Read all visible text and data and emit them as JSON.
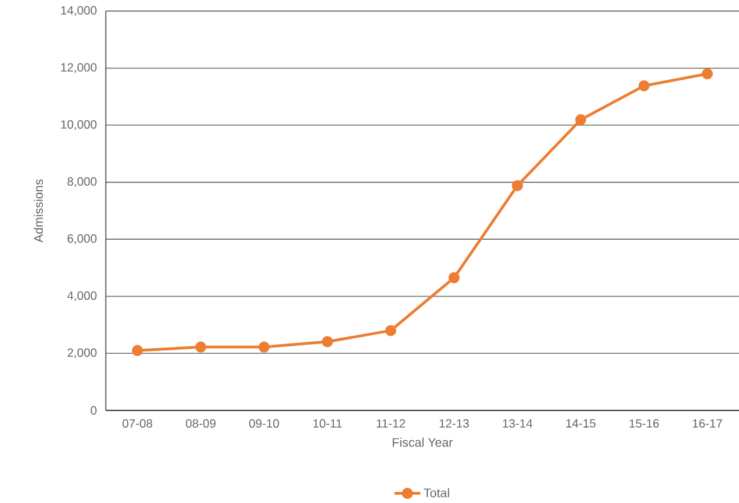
{
  "chart_data": {
    "type": "line",
    "xlabel": "Fiscal Year",
    "ylabel": "Admissions",
    "categories": [
      "07-08",
      "08-09",
      "09-10",
      "10-11",
      "11-12",
      "12-13",
      "13-14",
      "14-15",
      "15-16",
      "16-17"
    ],
    "series": [
      {
        "name": "Total",
        "color": "#ed7d31",
        "values": [
          2100,
          2220,
          2220,
          2410,
          2800,
          4650,
          7880,
          10190,
          11380,
          11800
        ]
      }
    ],
    "ylim": [
      0,
      14000
    ],
    "yticks": [
      0,
      {
        "value": 2000,
        "label": "2,000"
      },
      {
        "value": 4000,
        "label": "4,000"
      },
      {
        "value": 6000,
        "label": "6,000"
      },
      {
        "value": 8000,
        "label": "8,000"
      },
      {
        "value": 10000,
        "label": "10,000"
      },
      {
        "value": 12000,
        "label": "12,000"
      },
      {
        "value": 14000,
        "label": "14,000"
      }
    ],
    "grid": "y",
    "legend": "bottom",
    "marker": "circle",
    "line_style": "solid"
  }
}
